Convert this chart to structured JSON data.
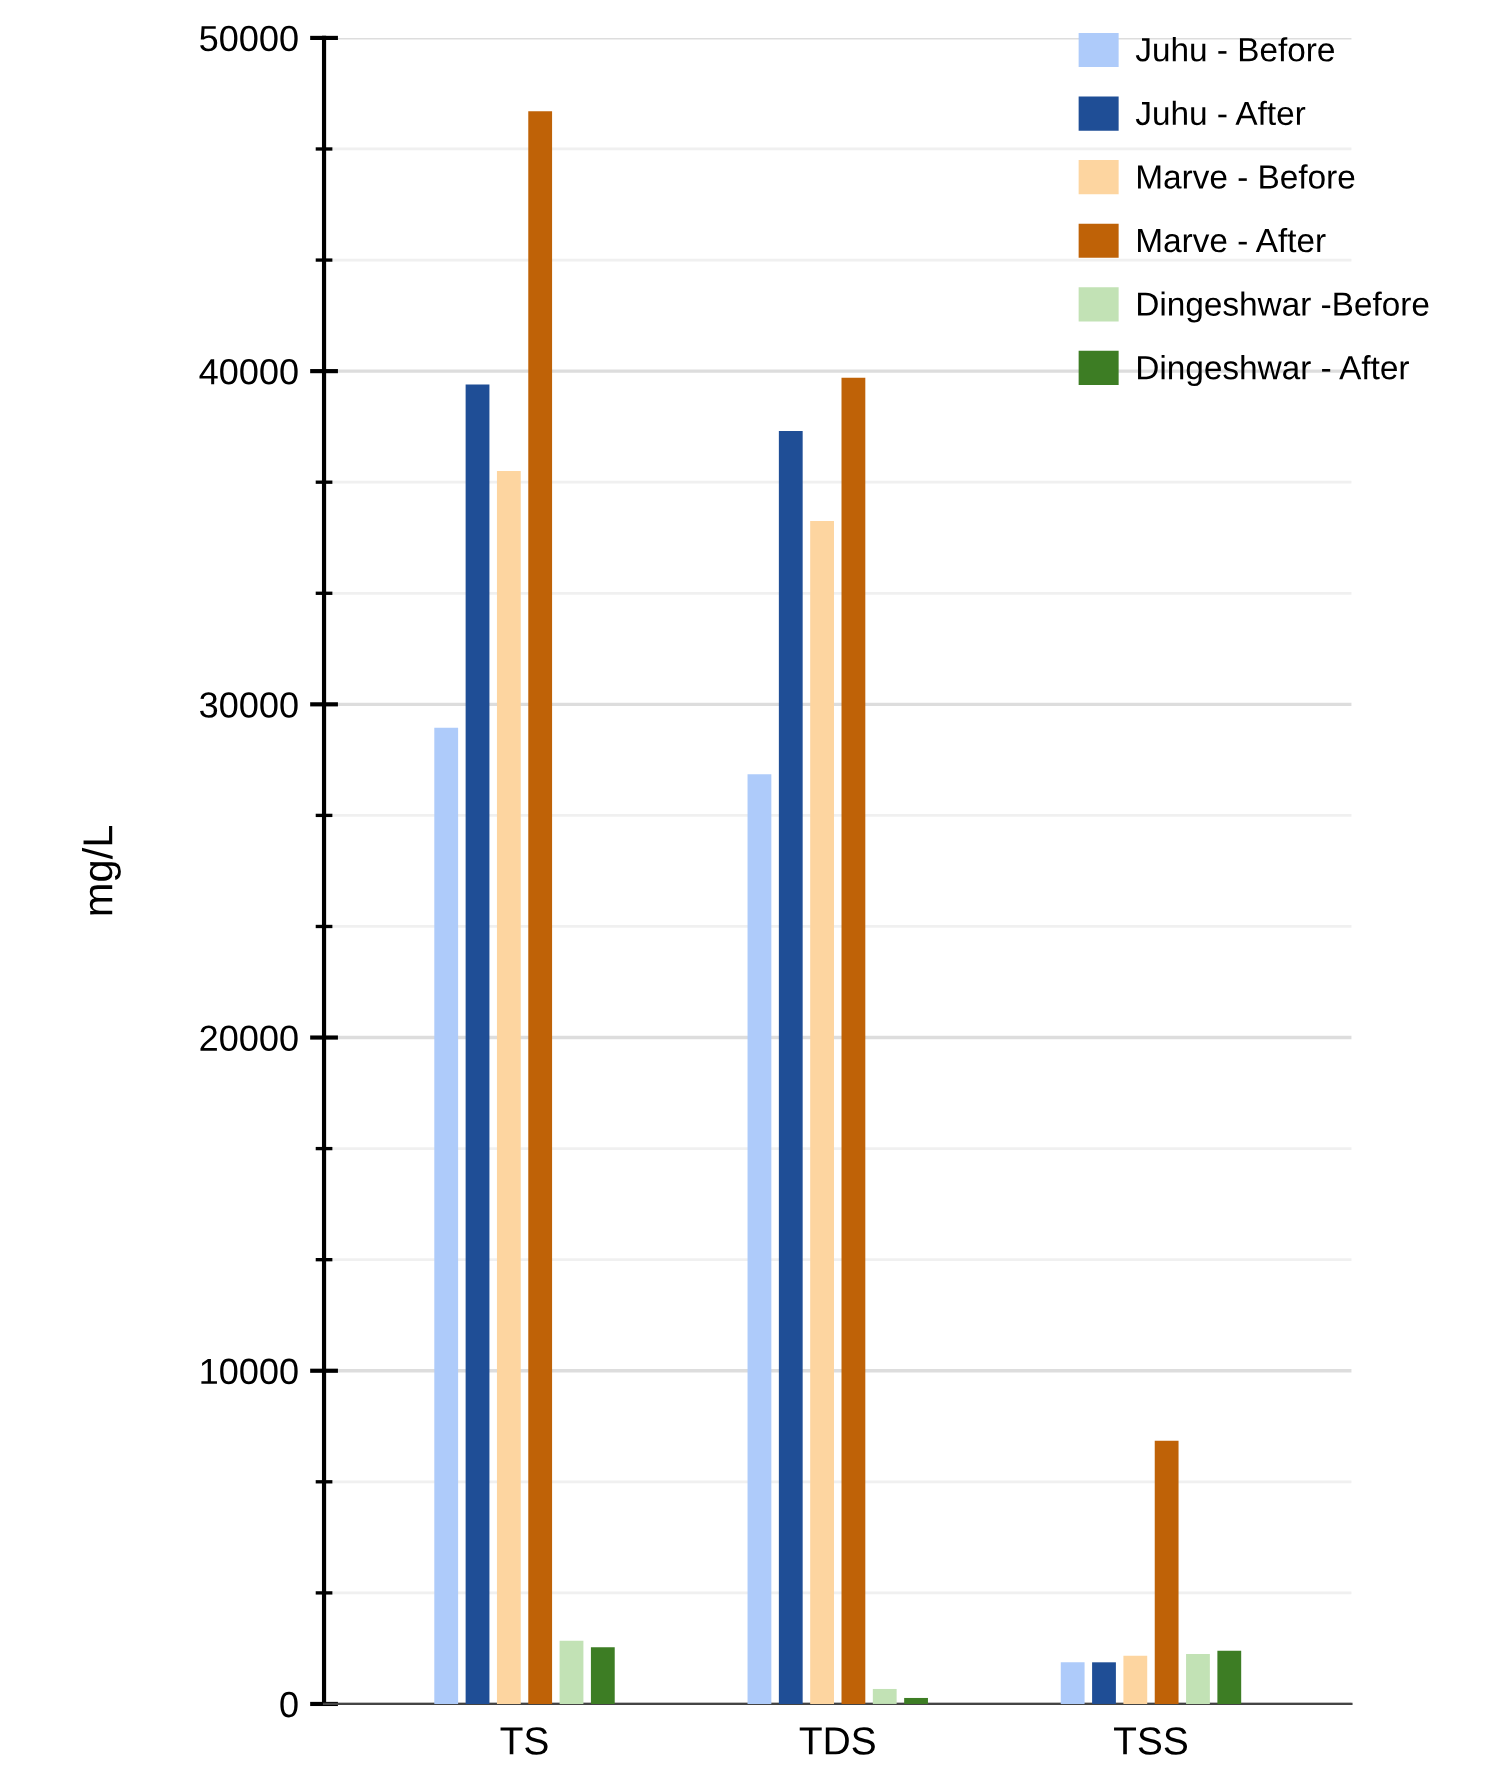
{
  "chart_data": {
    "type": "bar",
    "ylabel": "mg/L",
    "categories": [
      "TS",
      "TDS",
      "TSS"
    ],
    "series": [
      {
        "name": "Juhu - Before",
        "color": "#aecbfa",
        "values": [
          29300,
          27900,
          1250
        ]
      },
      {
        "name": "Juhu - After",
        "color": "#1f4e96",
        "values": [
          39600,
          38200,
          1250
        ]
      },
      {
        "name": "Marve - Before",
        "color": "#fdd5a0",
        "values": [
          37000,
          35500,
          1450
        ]
      },
      {
        "name": "Marve - After",
        "color": "#bf6207",
        "values": [
          47800,
          39800,
          7900
        ]
      },
      {
        "name": "Dingeshwar -Before",
        "color": "#c2e2b5",
        "values": [
          1900,
          450,
          1500
        ]
      },
      {
        "name": "Dingeshwar - After",
        "color": "#3d7d24",
        "values": [
          1700,
          180,
          1600
        ]
      }
    ],
    "ylim": [
      0,
      50000
    ],
    "yticks": [
      0,
      {
        "value": 3333,
        "label": null
      },
      {
        "value": 6667,
        "label": null
      },
      10000,
      {
        "value": 13333,
        "label": null
      },
      {
        "value": 16667,
        "label": null
      },
      20000,
      {
        "value": 23333,
        "label": null
      },
      {
        "value": 26667,
        "label": null
      },
      30000,
      {
        "value": 33333,
        "label": null
      },
      {
        "value": 36667,
        "label": null
      },
      40000,
      {
        "value": 43333,
        "label": null
      },
      {
        "value": 46667,
        "label": null
      },
      50000
    ],
    "grid": "y",
    "legend": "top right"
  }
}
